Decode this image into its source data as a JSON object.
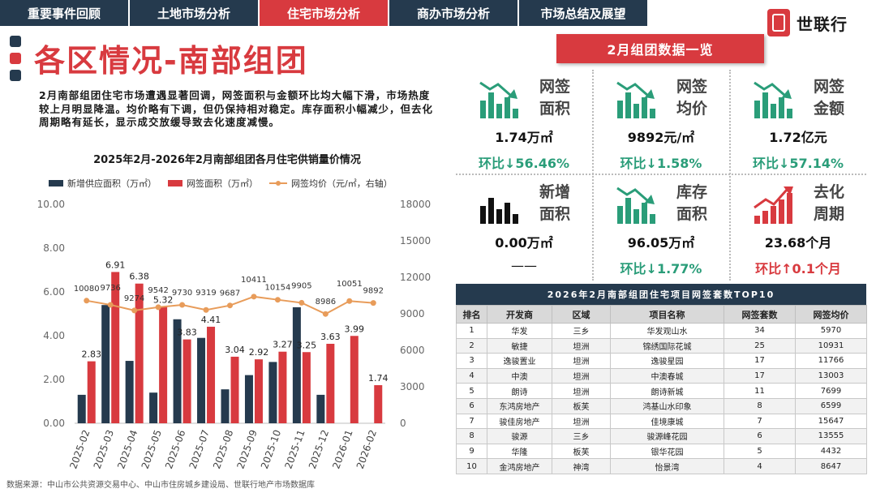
{
  "nav": {
    "tabs": [
      {
        "label": "重要事件回顾",
        "active": false
      },
      {
        "label": "土地市场分析",
        "active": false
      },
      {
        "label": "住宅市场分析",
        "active": true
      },
      {
        "label": "商办市场分析",
        "active": false
      },
      {
        "label": "市场总结及展望",
        "active": false
      }
    ]
  },
  "brand": {
    "name": "世联行"
  },
  "page": {
    "title": "各区情况-南部组团",
    "description": "2月南部组团住宅市场遭遇显著回调，网签面积与金额环比均大幅下滑，市场热度较上月明显降温。均价略有下调，但仍保持相对稳定。库存面积小幅减少，但去化周期略有延长，显示成交放缓导致去化速度减慢。",
    "source": "数据来源：中山市公共资源交易中心、中山市住房城乡建设局、世联行地产市场数据库"
  },
  "colors": {
    "navy": "#253a4e",
    "red": "#d83a3f",
    "orange": "#e89c5a",
    "green": "#2a9d79"
  },
  "chart_data": {
    "type": "bar",
    "title": "2025年2月-2026年2月南部组团各月住宅供销量价情况",
    "categories": [
      "2025-02",
      "2025-03",
      "2025-04",
      "2025-05",
      "2025-06",
      "2025-07",
      "2025-08",
      "2025-09",
      "2025-10",
      "2025-11",
      "2025-12",
      "2026-01",
      "2026-02"
    ],
    "series": [
      {
        "name": "新增供应面积（万㎡）",
        "type": "bar",
        "axis": "left",
        "values": [
          1.3,
          5.4,
          2.85,
          1.4,
          4.75,
          3.9,
          1.55,
          2.2,
          2.8,
          5.3,
          1.3,
          0,
          0
        ],
        "labels_shown": false
      },
      {
        "name": "网签面积（万㎡）",
        "type": "bar",
        "axis": "left",
        "values": [
          2.83,
          6.91,
          6.38,
          5.32,
          3.83,
          4.41,
          3.04,
          2.92,
          3.27,
          3.25,
          3.63,
          3.99,
          1.74
        ],
        "labels": [
          "2.83",
          "6.91",
          "6.38",
          "5.32",
          "3.83",
          "4.41",
          "3.04",
          "2.92",
          "3.27",
          "3.25",
          "3.63",
          "3.99",
          "1.74"
        ]
      },
      {
        "name": "网签均价（元/㎡，右轴）",
        "type": "line",
        "axis": "right",
        "values": [
          10080,
          9736,
          9274,
          9542,
          9730,
          9319,
          9687,
          10411,
          10154,
          9905,
          8986,
          10051,
          9892
        ],
        "labels": [
          "10080",
          "9736",
          "9274",
          "9542",
          "9730",
          "9319",
          "9687",
          "10411",
          "10154",
          "9905",
          "8986",
          "10051",
          "9892"
        ]
      }
    ],
    "y_left": {
      "min": 0,
      "max": 10,
      "ticks": [
        "0.00",
        "2.00",
        "4.00",
        "6.00",
        "8.00",
        "10.00"
      ]
    },
    "y_right": {
      "min": 0,
      "max": 18000,
      "ticks": [
        "0",
        "3000",
        "6000",
        "9000",
        "12000",
        "15000",
        "18000"
      ]
    }
  },
  "summary": {
    "title": "2月组团数据一览",
    "cards": [
      {
        "label1": "网签",
        "label2": "面积",
        "value": "1.74万㎡",
        "change": "环比↓56.46%",
        "dir": "down",
        "icon": "bar-chart-down-icon"
      },
      {
        "label1": "网签",
        "label2": "均价",
        "value": "9892元/㎡",
        "change": "环比↓1.58%",
        "dir": "down",
        "icon": "bar-chart-down-icon"
      },
      {
        "label1": "网签",
        "label2": "金额",
        "value": "1.72亿元",
        "change": "环比↓57.14%",
        "dir": "down",
        "icon": "bar-chart-down-icon"
      },
      {
        "label1": "新增",
        "label2": "面积",
        "value": "0.00万㎡",
        "change": "——",
        "dir": "none",
        "icon": "bar-chart-icon"
      },
      {
        "label1": "库存",
        "label2": "面积",
        "value": "96.05万㎡",
        "change": "环比↓1.77%",
        "dir": "down",
        "icon": "bar-chart-down-icon"
      },
      {
        "label1": "去化",
        "label2": "周期",
        "value": "23.68个月",
        "change": "环比↑0.1个月",
        "dir": "up",
        "icon": "bar-chart-up-icon"
      }
    ]
  },
  "table": {
    "title": "2026年2月南部组团住宅项目网签套数TOP10",
    "headers": [
      "排名",
      "开发商",
      "区域",
      "项目名称",
      "网签套数",
      "网签均价"
    ],
    "rows": [
      [
        "1",
        "华发",
        "三乡",
        "华发观山水",
        "34",
        "5970"
      ],
      [
        "2",
        "敏捷",
        "坦洲",
        "锦绣国际花城",
        "25",
        "10931"
      ],
      [
        "3",
        "逸骏置业",
        "坦洲",
        "逸骏星园",
        "17",
        "11766"
      ],
      [
        "4",
        "中澳",
        "坦洲",
        "中澳春城",
        "17",
        "13003"
      ],
      [
        "5",
        "朗诗",
        "坦洲",
        "朗诗新城",
        "11",
        "7699"
      ],
      [
        "6",
        "东鸿房地产",
        "板芙",
        "鸿基山水印象",
        "8",
        "6599"
      ],
      [
        "7",
        "骏佳房地产",
        "坦洲",
        "佳境康城",
        "7",
        "15647"
      ],
      [
        "8",
        "骏源",
        "三乡",
        "骏源峰花园",
        "6",
        "13555"
      ],
      [
        "9",
        "华隆",
        "板芙",
        "银华花园",
        "5",
        "4432"
      ],
      [
        "10",
        "金鸿房地产",
        "神湾",
        "怡景湾",
        "4",
        "8647"
      ]
    ]
  }
}
